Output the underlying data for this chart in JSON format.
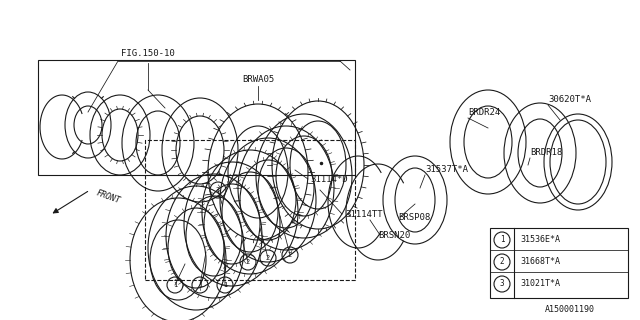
{
  "bg_color": "#ffffff",
  "line_color": "#1a1a1a",
  "fig_number": "A150001190",
  "legend_items": [
    {
      "num": "1",
      "text": "31536E*A"
    },
    {
      "num": "2",
      "text": "31668T*A"
    },
    {
      "num": "3",
      "text": "31021T*A"
    }
  ]
}
